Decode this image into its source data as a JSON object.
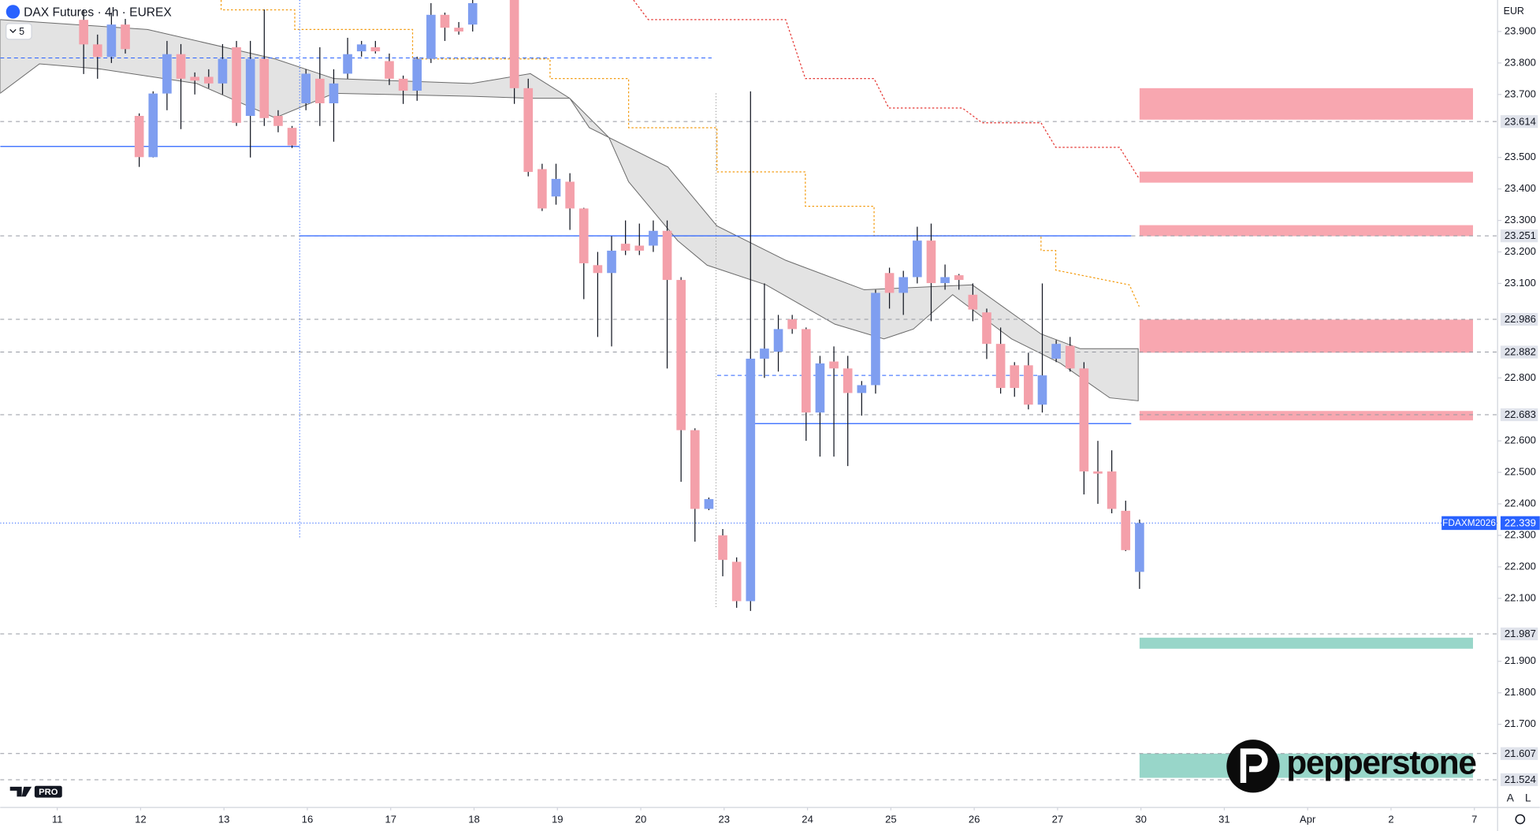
{
  "chart_data": {
    "type": "candlestick",
    "title": "DAX Futures · 4h · EUREX",
    "indicator_count": "5",
    "currency": "EUR",
    "symbol": "FDAXM2026",
    "last_price": {
      "value": 22.339,
      "label": "22.339"
    },
    "up_color": "#7f9ef0",
    "down_color": "#f4a0aa",
    "open": [
      23.937,
      23.859,
      23.819,
      23.922,
      23.632,
      23.501,
      23.703,
      23.828,
      23.756,
      23.756,
      23.735,
      23.85,
      23.632,
      23.813,
      23.632,
      23.594,
      23.672,
      23.75,
      23.672,
      23.766,
      23.837,
      23.85,
      23.806,
      23.75,
      23.712,
      23.813,
      23.953,
      23.912,
      23.922,
      null,
      null,
      24.0,
      23.72,
      23.463,
      23.376,
      23.423,
      23.338,
      23.158,
      23.133,
      23.226,
      23.22,
      23.22,
      23.267,
      23.111,
      22.634,
      22.384,
      22.3,
      22.216,
      22.091,
      22.861,
      22.883,
      22.986,
      22.955,
      22.69,
      22.852,
      22.83,
      22.752,
      22.777,
      23.133,
      23.07,
      23.12,
      23.236,
      23.101,
      23.126,
      23.064,
      23.008,
      22.908,
      22.84,
      22.84,
      22.715,
      22.861,
      22.902,
      22.83,
      22.503,
      22.503,
      22.378,
      22.184
    ],
    "high": [
      23.97,
      23.89,
      23.96,
      23.94,
      23.64,
      23.71,
      23.87,
      23.86,
      23.77,
      23.78,
      23.86,
      23.87,
      23.87,
      23.97,
      23.65,
      23.6,
      23.78,
      23.85,
      23.78,
      23.88,
      23.87,
      23.87,
      23.83,
      23.76,
      23.82,
      23.99,
      23.96,
      23.93,
      24.0,
      null,
      null,
      24.0,
      23.75,
      23.48,
      23.48,
      23.45,
      23.34,
      23.2,
      23.25,
      23.3,
      23.29,
      23.3,
      23.3,
      23.12,
      22.64,
      22.42,
      22.32,
      22.23,
      23.71,
      23.1,
      23.0,
      23.0,
      22.96,
      22.87,
      22.9,
      22.87,
      22.79,
      23.08,
      23.15,
      23.14,
      23.28,
      23.29,
      23.16,
      23.13,
      23.1,
      23.02,
      22.96,
      22.85,
      22.88,
      23.1,
      22.92,
      22.93,
      22.85,
      22.6,
      22.57,
      22.41,
      22.35
    ],
    "low": [
      23.765,
      23.75,
      23.8,
      23.83,
      23.47,
      23.5,
      23.65,
      23.59,
      23.7,
      23.72,
      23.7,
      23.6,
      23.5,
      23.6,
      23.58,
      23.53,
      23.65,
      23.6,
      23.55,
      23.75,
      23.82,
      23.83,
      23.73,
      23.67,
      23.68,
      23.8,
      23.87,
      23.89,
      23.9,
      null,
      null,
      23.67,
      23.44,
      23.33,
      23.35,
      23.27,
      23.05,
      22.93,
      22.9,
      23.19,
      23.19,
      23.2,
      22.83,
      22.47,
      22.28,
      22.38,
      22.17,
      22.07,
      22.06,
      22.8,
      22.82,
      22.94,
      22.6,
      22.55,
      22.55,
      22.52,
      22.68,
      22.75,
      23.02,
      23.0,
      23.1,
      22.98,
      23.08,
      23.08,
      22.98,
      22.86,
      22.75,
      22.74,
      22.7,
      22.69,
      22.85,
      22.82,
      22.43,
      22.4,
      22.37,
      22.25,
      22.13
    ],
    "close": [
      23.859,
      23.819,
      23.922,
      23.844,
      23.501,
      23.703,
      23.828,
      23.75,
      23.744,
      23.735,
      23.813,
      23.61,
      23.813,
      23.625,
      23.6,
      23.538,
      23.766,
      23.672,
      23.735,
      23.828,
      23.859,
      23.837,
      23.75,
      23.712,
      23.813,
      23.953,
      23.912,
      23.9,
      23.99,
      null,
      null,
      23.72,
      23.454,
      23.338,
      23.432,
      23.338,
      23.164,
      23.133,
      23.204,
      23.204,
      23.204,
      23.267,
      23.111,
      22.634,
      22.384,
      22.415,
      22.222,
      22.091,
      22.861,
      22.893,
      22.955,
      22.955,
      22.69,
      22.846,
      22.83,
      22.752,
      22.777,
      23.07,
      23.07,
      23.12,
      23.236,
      23.101,
      23.12,
      23.111,
      23.017,
      22.908,
      22.768,
      22.768,
      22.715,
      22.808,
      22.908,
      22.83,
      22.503,
      22.496,
      22.384,
      22.253,
      22.339
    ],
    "xlim": [
      -6.007,
      101.77
    ],
    "xticks": [
      {
        "value": -1.9,
        "label": "11"
      },
      {
        "value": 4.1,
        "label": "12"
      },
      {
        "value": 10.1,
        "label": "13"
      },
      {
        "value": 16.1,
        "label": "16"
      },
      {
        "value": 22.1,
        "label": "17"
      },
      {
        "value": 28.1,
        "label": "18"
      },
      {
        "value": 34.1,
        "label": "19"
      },
      {
        "value": 40.1,
        "label": "20"
      },
      {
        "value": 46.1,
        "label": "23"
      },
      {
        "value": 52.1,
        "label": "24"
      },
      {
        "value": 58.1,
        "label": "25"
      },
      {
        "value": 64.1,
        "label": "26"
      },
      {
        "value": 70.1,
        "label": "27"
      },
      {
        "value": 76.1,
        "label": "30"
      },
      {
        "value": 82.1,
        "label": "31"
      },
      {
        "value": 88.1,
        "label": "Apr"
      },
      {
        "value": 94.1,
        "label": "2"
      },
      {
        "value": 100.1,
        "label": "7"
      }
    ],
    "ylim": [
      21.436,
      24.0
    ],
    "yticks": [
      {
        "value": 23.9,
        "label": "23.900"
      },
      {
        "value": 23.8,
        "label": "23.800"
      },
      {
        "value": 23.7,
        "label": "23.700"
      },
      {
        "value": 23.5,
        "label": "23.500"
      },
      {
        "value": 23.4,
        "label": "23.400"
      },
      {
        "value": 23.3,
        "label": "23.300"
      },
      {
        "value": 23.2,
        "label": "23.200"
      },
      {
        "value": 23.1,
        "label": "23.100"
      },
      {
        "value": 22.8,
        "label": "22.800"
      },
      {
        "value": 22.6,
        "label": "22.600"
      },
      {
        "value": 22.5,
        "label": "22.500"
      },
      {
        "value": 22.4,
        "label": "22.400"
      },
      {
        "value": 22.3,
        "label": "22.300"
      },
      {
        "value": 22.2,
        "label": "22.200"
      },
      {
        "value": 22.1,
        "label": "22.100"
      },
      {
        "value": 21.9,
        "label": "21.900"
      },
      {
        "value": 21.8,
        "label": "21.800"
      },
      {
        "value": 21.7,
        "label": "21.700"
      }
    ],
    "grid": false,
    "price_levels": [
      {
        "value": 23.614,
        "label": "23.614"
      },
      {
        "value": 23.251,
        "label": "23.251"
      },
      {
        "value": 22.986,
        "label": "22.986"
      },
      {
        "value": 22.882,
        "label": "22.882"
      },
      {
        "value": 22.683,
        "label": "22.683"
      },
      {
        "value": 21.987,
        "label": "21.987"
      },
      {
        "value": 21.607,
        "label": "21.607"
      },
      {
        "value": 21.524,
        "label": "21.524"
      }
    ],
    "zones": [
      {
        "low": 23.62,
        "high": 23.72,
        "x": [
          76,
          100
        ],
        "color": "#f8a7b0"
      },
      {
        "low": 23.42,
        "high": 23.455,
        "x": [
          76,
          100
        ],
        "color": "#f8a7b0"
      },
      {
        "low": 23.25,
        "high": 23.285,
        "x": [
          76,
          100
        ],
        "color": "#f8a7b0"
      },
      {
        "low": 22.88,
        "high": 22.985,
        "x": [
          76,
          100
        ],
        "color": "#f8a7b0"
      },
      {
        "low": 22.665,
        "high": 22.695,
        "x": [
          76,
          100
        ],
        "color": "#f8a7b0"
      },
      {
        "low": 21.94,
        "high": 21.975,
        "x": [
          76,
          100
        ],
        "color": "#98d6c9"
      },
      {
        "low": 21.53,
        "high": 21.607,
        "x": [
          76,
          100
        ],
        "color": "#98d6c9"
      }
    ],
    "lines": [
      {
        "value": 23.535,
        "x": [
          -6,
          15.55
        ],
        "dashed": false
      },
      {
        "value": 23.251,
        "x": [
          15.55,
          75.4
        ],
        "dashed": false
      },
      {
        "value": 22.655,
        "x": [
          47.7,
          75.4
        ],
        "dashed": false
      },
      {
        "value": 23.816,
        "x": [
          -6,
          45.2
        ],
        "dashed": true
      },
      {
        "value": 22.808,
        "x": [
          45.6,
          68.9
        ],
        "dashed": true
      }
    ],
    "broker": "pepperstone",
    "badge": "PRO",
    "scale_buttons": [
      "A",
      "L"
    ]
  }
}
